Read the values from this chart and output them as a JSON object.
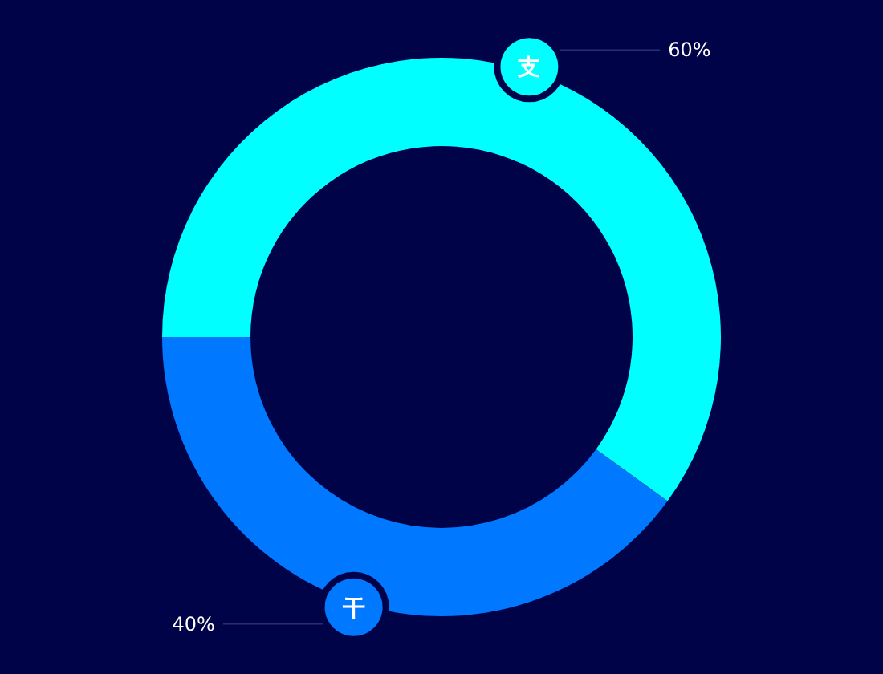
{
  "chart_data": {
    "type": "donut",
    "categories": [
      "支",
      "干"
    ],
    "values": [
      60,
      40
    ],
    "colors": [
      "#00ffff",
      "#0078ff"
    ],
    "value_labels": [
      "60%",
      "40%"
    ]
  }
}
